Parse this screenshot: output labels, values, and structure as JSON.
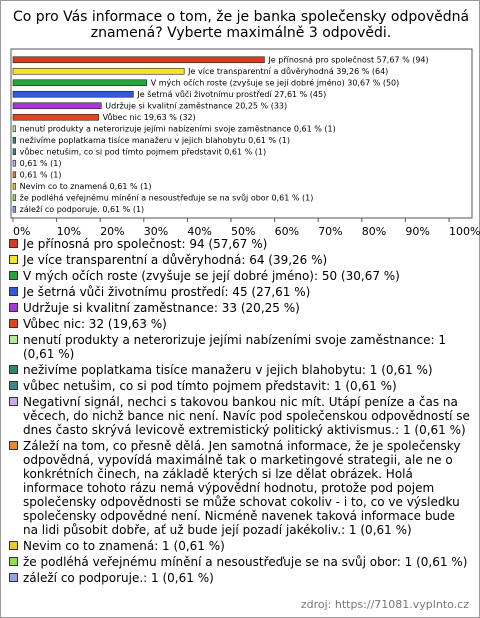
{
  "chart_data": {
    "type": "bar",
    "orientation": "horizontal",
    "title": "Co pro Vás informace o tom, že je banka společensky odpovědná znamená? Vyberte maximálně 3 odpovědi.",
    "categories": [
      "Je přínosná pro společnost: 94 (57,67 %)",
      "Je více transparentní a důvěryhodná: 64 (39,26 %)",
      "V mých očích roste (zvyšuje se její dobré jméno): 50 (30,67 %)",
      "Je šetrná vůči životnímu prostředí: 45 (27,61 %)",
      "Udržuje si kvalitní zaměstnance: 33 (20,25 %)",
      "Vůbec nic: 32 (19,63 %)",
      "nenutí produkty a neterorizuje jejími nabízeními svoje zaměstnance: 1 (0,61 %)",
      "neživíme poplatkama tisíce manažeru v jejich blahobytu: 1 (0,61 %)",
      "vůbec netušim, co si pod tímto pojmem představit: 1 (0,61 %)",
      "Negativní signál, nechci s takovou bankou nic mít. Utápí peníze a čas na věcech, do nichž bance nic není. Navíc pod společenskou odpovědností se dnes často skrývá levicově extremistický politický aktivismus.: 1 (0,61 %)",
      "Záleží na tom, co přesně dělá. Jen samotná informace, že je společensky odpovědná, vypovídá maximálně tak o marketingové strategii, ale ne o konkrétních činech, na základě kterých si lze dělat obrázek. Holá informace tohoto rázu nemá výpovědní hodnotu, protože pod pojem společensky odpovědnosti se může schovat cokoliv - i to, co ve výsledku společensky odpovědné není. Nicméně navenek taková informace bude na lidi působit dobře, ať už bude její pozadí jakékoliv.: 1 (0,61 %)",
      "Nevim co to znamená: 1 (0,61 %)",
      "že podléhá veřejnému mínění a nesoustřeďuje se na svůj obor: 1 (0,61 %)",
      "záleží co podporuje.: 1 (0,61 %)"
    ],
    "values": [
      57.67,
      39.26,
      30.67,
      27.61,
      20.25,
      19.63,
      0.61,
      0.61,
      0.61,
      0.61,
      0.61,
      0.61,
      0.61,
      0.61
    ],
    "value_labels": [
      "Je přínosná pro společnost 57,67 % (94)",
      "Je více transparentní a důvěryhodná 39,26 % (64)",
      "V mých očích roste (zvyšuje se její dobré jméno) 30,67 % (50)",
      "Je šetrná vůči životnímu prostředí 27,61 % (45)",
      "Udržuje si kvalitní zaměstnance 20,25 % (33)",
      "Vůbec nic 19,63 % (32)",
      "nenutí produkty a neterorizuje jejími nabízeními svoje zaměstnance 0,61 % (1)",
      "neživíme poplatkama tisíce manažeru v jejich blahobytu 0,61 % (1)",
      "vůbec netušim, co si pod tímto pojmem představit 0,61 % (1)",
      "0,61 % (1)",
      "0,61 % (1)",
      "Nevim co to znamená 0,61 % (1)",
      "že podléhá veřejnému mínění a nesoustřeďuje se na svůj obor 0,61 % (1)",
      "záleží co podporuje. 0,61 % (1)"
    ],
    "colors": [
      "#d93a25",
      "#f2e528",
      "#27a33a",
      "#3358e0",
      "#a43ad6",
      "#e2451b",
      "#b5e89a",
      "#2b8a66",
      "#3a8a8a",
      "#c8aee6",
      "#f0872a",
      "#f2c72a",
      "#8fe04a",
      "#8aa6e6"
    ],
    "xlim": [
      0,
      100
    ],
    "xticks": [
      {
        "value": 0,
        "label": "0%"
      },
      {
        "value": 10,
        "label": "10%"
      },
      {
        "value": 20,
        "label": "20%"
      },
      {
        "value": 30,
        "label": "30%"
      },
      {
        "value": 40,
        "label": "40%"
      },
      {
        "value": 50,
        "label": "50%"
      },
      {
        "value": 60,
        "label": "60%"
      },
      {
        "value": 70,
        "label": "70%"
      },
      {
        "value": 80,
        "label": "80%"
      },
      {
        "value": 90,
        "label": "90%"
      },
      {
        "value": 100,
        "label": "100%"
      }
    ],
    "grid": false,
    "source": "zdroj: https://71081.vyplnto.cz"
  }
}
